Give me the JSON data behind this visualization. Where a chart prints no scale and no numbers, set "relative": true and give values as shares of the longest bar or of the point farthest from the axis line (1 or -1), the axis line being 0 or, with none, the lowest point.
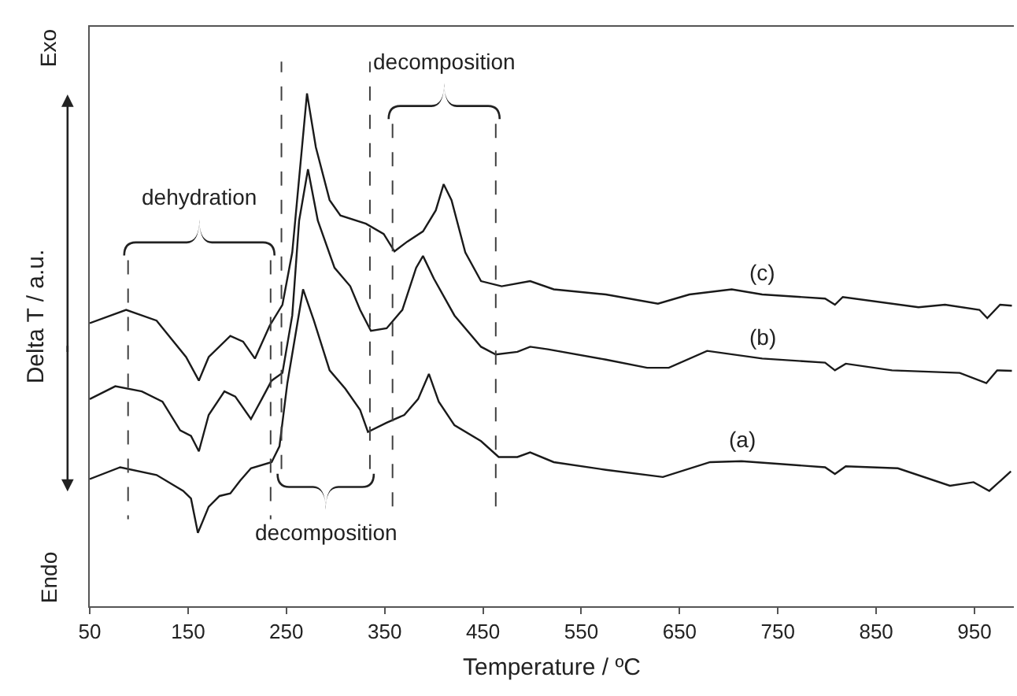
{
  "chart_data": {
    "type": "line",
    "relative": true,
    "xlabel": "Temperature / ºC",
    "ylabel": "Delta T / a.u.",
    "xlim": [
      50,
      990
    ],
    "xticks": [
      50,
      150,
      250,
      350,
      450,
      550,
      650,
      750,
      850,
      950
    ],
    "grid": false,
    "legend": false,
    "annotations": [
      "Exo",
      "Endo",
      "dehydration",
      "decomposition",
      "decomposition"
    ],
    "ref_lines": [
      {
        "axis": "x",
        "value": 89,
        "line_style": "dashed",
        "color": "#404040"
      },
      {
        "axis": "x",
        "value": 234,
        "line_style": "dashed",
        "color": "#404040"
      },
      {
        "axis": "x",
        "value": 245,
        "line_style": "dashed",
        "color": "#404040"
      },
      {
        "axis": "x",
        "value": 335,
        "line_style": "dashed",
        "color": "#404040"
      },
      {
        "axis": "x",
        "value": 358,
        "line_style": "dashed",
        "color": "#404040"
      },
      {
        "axis": "x",
        "value": 463,
        "line_style": "dashed",
        "color": "#404040"
      }
    ],
    "series": [
      {
        "name": "(a)",
        "color": "#1a1a1a",
        "x": [
          50,
          81,
          118,
          145,
          153,
          160,
          171,
          182,
          193,
          203,
          214,
          235,
          243,
          251,
          267,
          278,
          294,
          310,
          325,
          333,
          352,
          370,
          384,
          395,
          405,
          421,
          448,
          466,
          485,
          498,
          522,
          575,
          633,
          681,
          713,
          798,
          808,
          819,
          872,
          925,
          949,
          965,
          987
        ],
        "values": [
          0.248,
          0.271,
          0.256,
          0.225,
          0.21,
          0.143,
          0.194,
          0.215,
          0.22,
          0.245,
          0.269,
          0.281,
          0.312,
          0.435,
          0.618,
          0.557,
          0.46,
          0.424,
          0.383,
          0.34,
          0.358,
          0.373,
          0.404,
          0.453,
          0.399,
          0.353,
          0.322,
          0.291,
          0.291,
          0.3,
          0.281,
          0.266,
          0.252,
          0.281,
          0.283,
          0.271,
          0.258,
          0.273,
          0.269,
          0.235,
          0.242,
          0.225,
          0.263
        ]
      },
      {
        "name": "(b)",
        "color": "#1a1a1a",
        "x": [
          50,
          76,
          103,
          124,
          142,
          153,
          161,
          171,
          187,
          198,
          214,
          225,
          235,
          246,
          256,
          263,
          272,
          282,
          299,
          315,
          325,
          336,
          352,
          368,
          382,
          389,
          400,
          421,
          448,
          463,
          485,
          498,
          516,
          575,
          617,
          639,
          678,
          734,
          798,
          808,
          819,
          866,
          935,
          962,
          973,
          988
        ],
        "values": [
          0.404,
          0.429,
          0.419,
          0.399,
          0.343,
          0.332,
          0.302,
          0.373,
          0.419,
          0.409,
          0.365,
          0.404,
          0.44,
          0.455,
          0.567,
          0.752,
          0.852,
          0.752,
          0.66,
          0.624,
          0.578,
          0.537,
          0.542,
          0.578,
          0.66,
          0.683,
          0.639,
          0.567,
          0.506,
          0.491,
          0.496,
          0.506,
          0.501,
          0.481,
          0.465,
          0.465,
          0.498,
          0.483,
          0.475,
          0.46,
          0.473,
          0.46,
          0.455,
          0.435,
          0.46,
          0.459
        ]
      },
      {
        "name": "(c)",
        "color": "#1a1a1a",
        "x": [
          50,
          87,
          118,
          148,
          161,
          171,
          193,
          206,
          218,
          233,
          246,
          256,
          271,
          280,
          294,
          305,
          331,
          349,
          360,
          373,
          389,
          402,
          410,
          418,
          432,
          448,
          469,
          498,
          522,
          575,
          628,
          660,
          703,
          734,
          798,
          808,
          816,
          893,
          920,
          955,
          963,
          976,
          988
        ],
        "values": [
          0.552,
          0.578,
          0.557,
          0.486,
          0.44,
          0.486,
          0.527,
          0.516,
          0.483,
          0.547,
          0.588,
          0.69,
          1,
          0.895,
          0.792,
          0.762,
          0.746,
          0.726,
          0.692,
          0.711,
          0.731,
          0.772,
          0.823,
          0.792,
          0.69,
          0.634,
          0.624,
          0.634,
          0.618,
          0.608,
          0.59,
          0.608,
          0.618,
          0.608,
          0.6,
          0.588,
          0.603,
          0.583,
          0.588,
          0.578,
          0.562,
          0.588,
          0.586
        ]
      }
    ]
  }
}
